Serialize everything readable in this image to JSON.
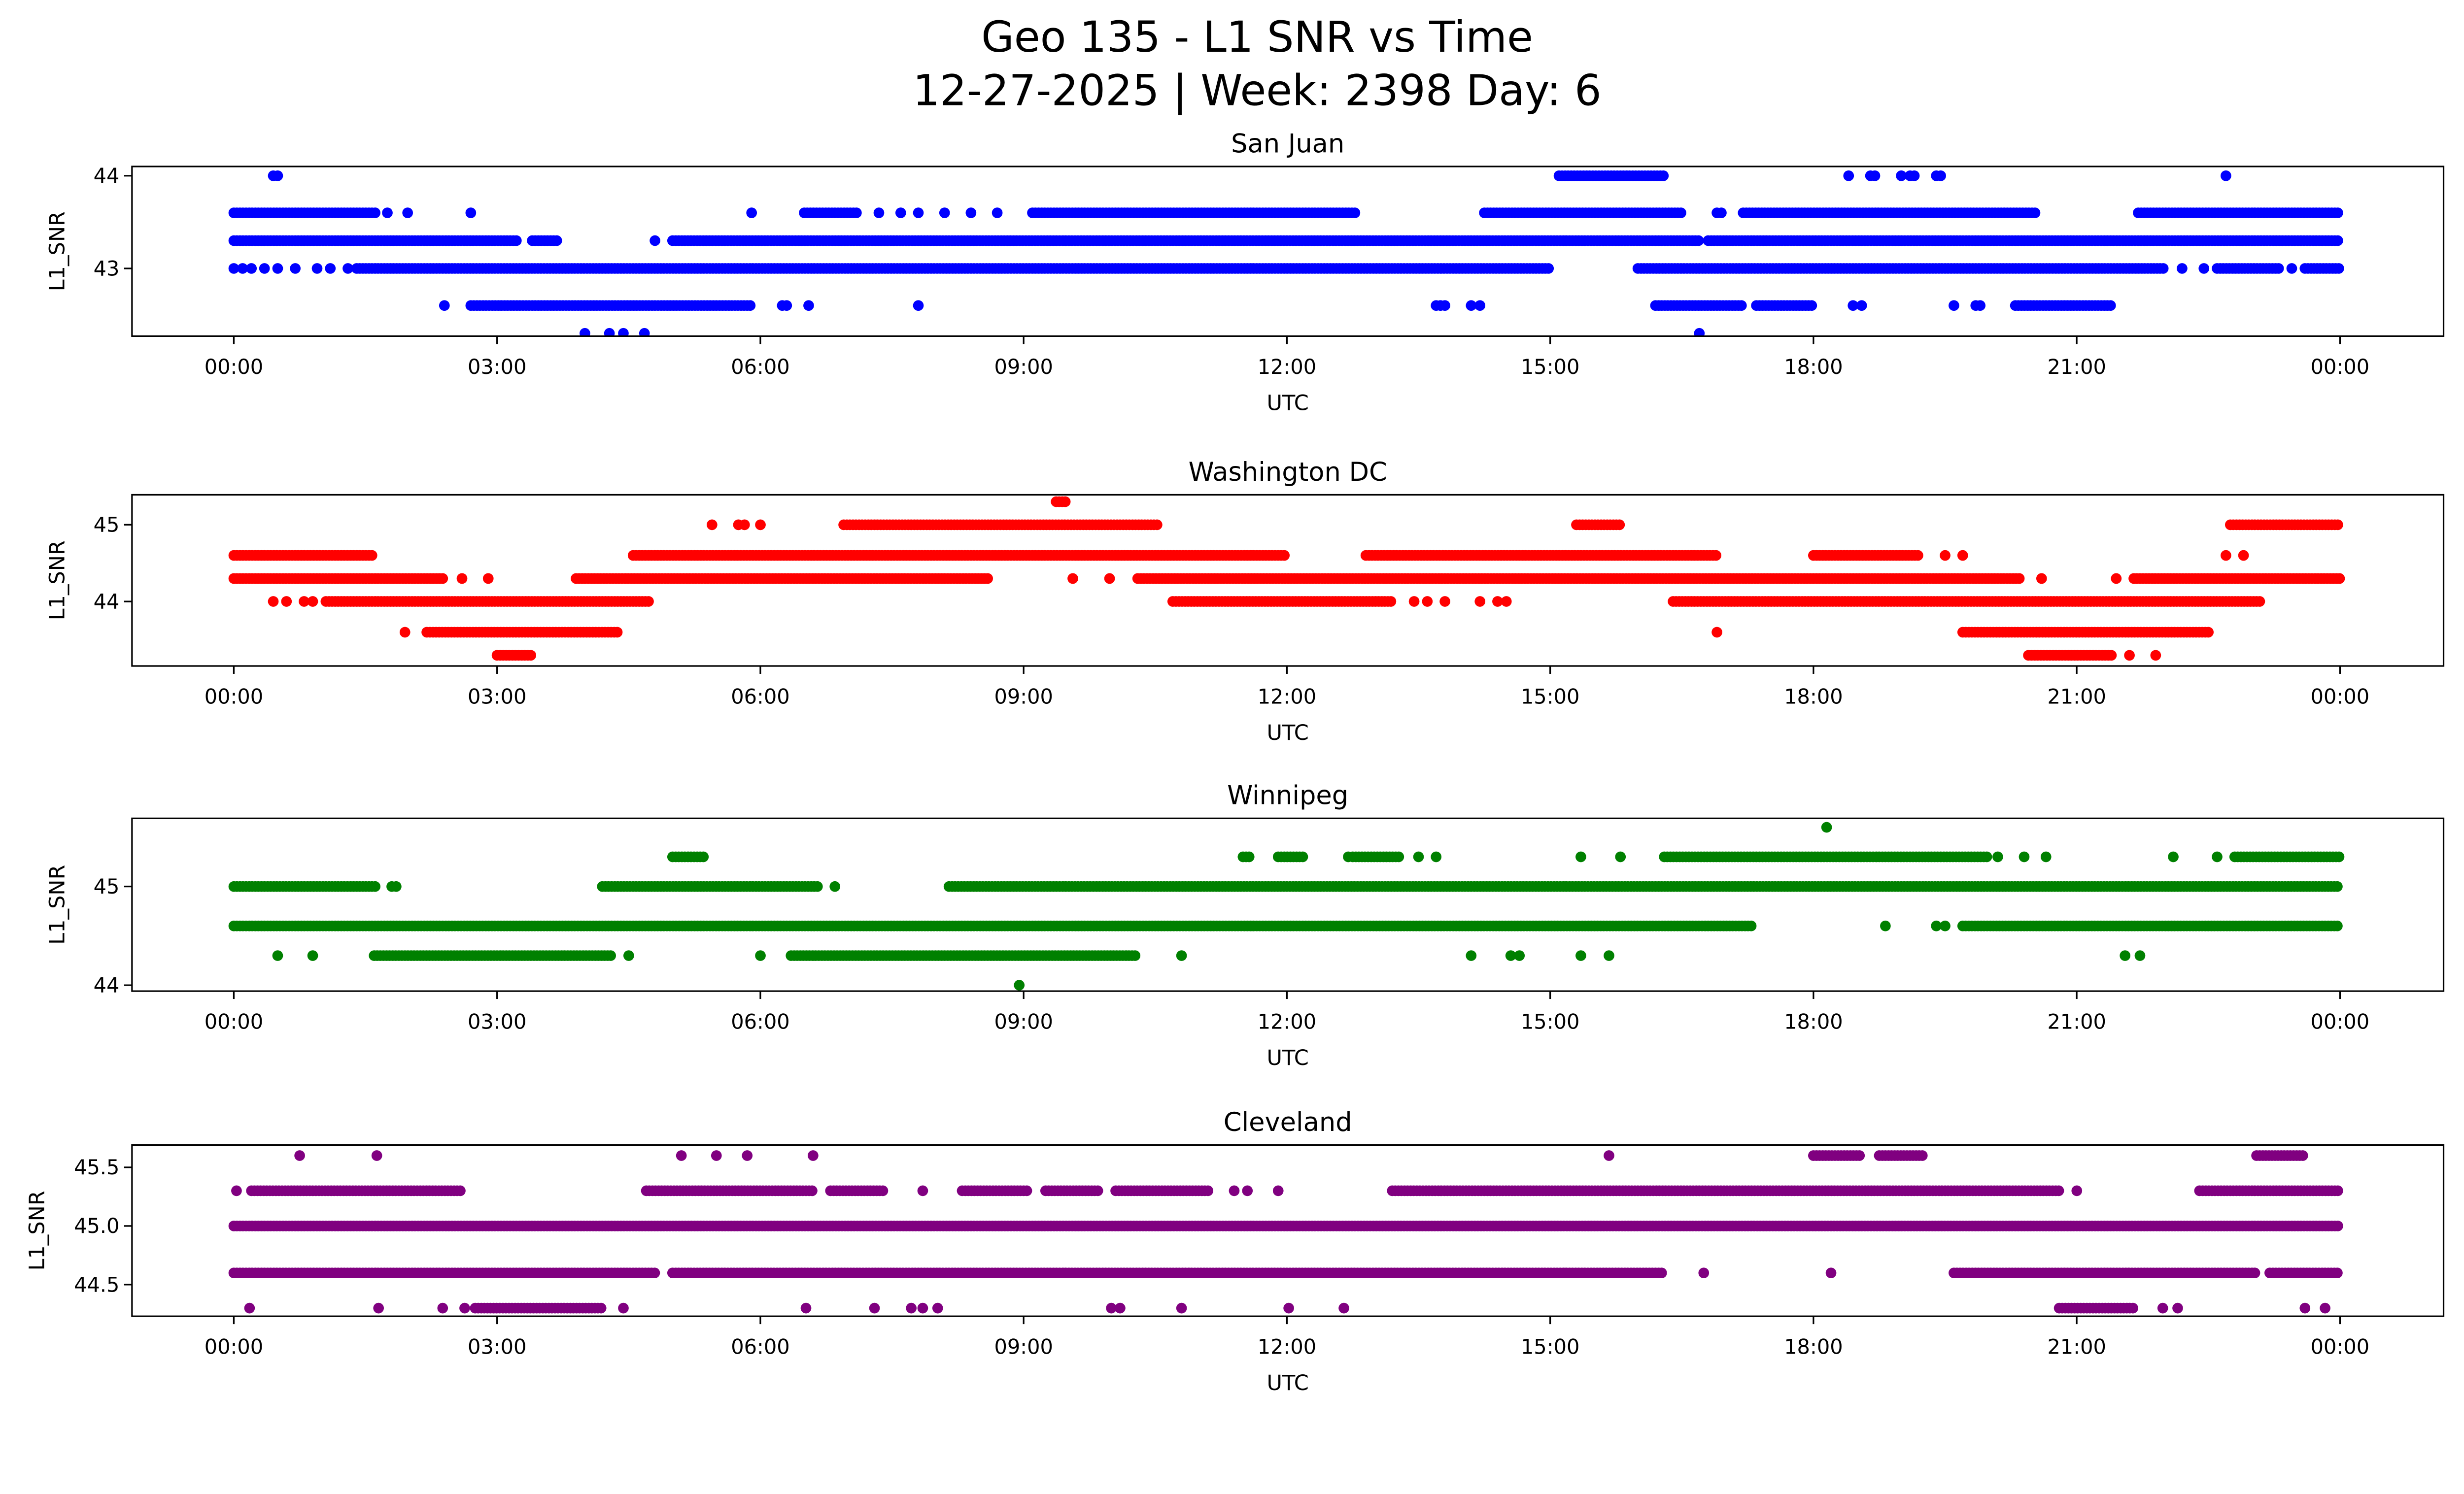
{
  "chart_data": [
    {
      "type": "scatter",
      "suptitle_line1": "Geo 135 - L1 SNR vs Time",
      "suptitle_line2": "12-27-2025 | Week: 2398 Day: 6",
      "title": "San Juan",
      "xlabel": "UTC",
      "ylabel": "L1_SNR",
      "color": "#0000ff",
      "xlim_hours": [
        -1.16,
        25.18
      ],
      "ylim": [
        42.27,
        44.1
      ],
      "xticks": [
        0,
        3,
        6,
        9,
        12,
        15,
        18,
        21,
        24
      ],
      "xtick_labels": [
        "00:00",
        "03:00",
        "06:00",
        "09:00",
        "12:00",
        "15:00",
        "18:00",
        "21:00",
        "00:00"
      ],
      "yticks": [
        43,
        44
      ],
      "ytick_labels": [
        "43",
        "44"
      ],
      "levels": [
        {
          "y": 44.0,
          "runs": [
            [
              15.1,
              16.3
            ]
          ],
          "points": [
            0.45,
            0.5,
            18.4,
            18.65,
            18.7,
            19.0,
            19.1,
            19.15,
            19.4,
            19.45,
            22.7
          ]
        },
        {
          "y": 43.6,
          "runs": [
            [
              0,
              1.63
            ],
            [
              6.5,
              7.1
            ],
            [
              9.1,
              12.8
            ],
            [
              14.25,
              16.5
            ],
            [
              17.2,
              20.55
            ],
            [
              21.7,
              24
            ]
          ],
          "points": [
            1.75,
            1.98,
            2.7,
            5.9,
            7.35,
            7.6,
            7.8,
            8.1,
            8.4,
            8.7,
            16.9,
            16.95
          ]
        },
        {
          "y": 43.3,
          "runs": [
            [
              0,
              3.25
            ],
            [
              3.4,
              3.7
            ],
            [
              5.0,
              16.7
            ],
            [
              16.8,
              24
            ]
          ],
          "points": [
            4.8
          ]
        },
        {
          "y": 43.0,
          "runs": [
            [
              1.4,
              15.0
            ],
            [
              16.0,
              22.0
            ],
            [
              22.6,
              23.3
            ],
            [
              23.6,
              24
            ]
          ],
          "points": [
            0,
            0.1,
            0.2,
            0.35,
            0.5,
            0.7,
            0.95,
            1.1,
            1.3,
            22.2,
            22.45,
            23.45
          ]
        },
        {
          "y": 42.6,
          "runs": [
            [
              2.7,
              5.9
            ],
            [
              16.2,
              17.2
            ],
            [
              17.35,
              18.0
            ],
            [
              20.3,
              21.4
            ]
          ],
          "points": [
            2.4,
            6.25,
            6.3,
            6.55,
            7.8,
            13.7,
            13.75,
            13.8,
            14.1,
            14.2,
            18.45,
            18.55,
            19.6,
            19.85,
            19.9
          ]
        },
        {
          "y": 42.3,
          "runs": [],
          "points": [
            4.0,
            4.28,
            4.44,
            4.68,
            16.7
          ]
        }
      ]
    },
    {
      "type": "scatter",
      "title": "Washington DC",
      "xlabel": "UTC",
      "ylabel": "L1_SNR",
      "color": "#ff0000",
      "xlim_hours": [
        -1.16,
        25.18
      ],
      "ylim": [
        43.16,
        45.39
      ],
      "xticks": [
        0,
        3,
        6,
        9,
        12,
        15,
        18,
        21,
        24
      ],
      "xtick_labels": [
        "00:00",
        "03:00",
        "06:00",
        "09:00",
        "12:00",
        "15:00",
        "18:00",
        "21:00",
        "00:00"
      ],
      "yticks": [
        44,
        45
      ],
      "ytick_labels": [
        "44",
        "45"
      ],
      "levels": [
        {
          "y": 45.3,
          "runs": [
            [
              9.37,
              9.5
            ]
          ],
          "points": []
        },
        {
          "y": 45.0,
          "runs": [
            [
              6.95,
              10.55
            ],
            [
              15.3,
              15.8
            ],
            [
              22.75,
              24
            ]
          ],
          "points": [
            5.45,
            5.75,
            5.82,
            6.0
          ]
        },
        {
          "y": 44.6,
          "runs": [
            [
              0,
              1.6
            ],
            [
              4.55,
              12.0
            ],
            [
              12.9,
              16.9
            ],
            [
              18.0,
              19.2
            ]
          ],
          "points": [
            19.5,
            19.7,
            22.7,
            22.9
          ]
        },
        {
          "y": 44.3,
          "runs": [
            [
              0,
              2.4
            ],
            [
              3.9,
              8.6
            ],
            [
              10.3,
              20.35
            ],
            [
              21.65,
              24
            ]
          ],
          "points": [
            2.6,
            2.9,
            9.56,
            9.98,
            20.6,
            21.45
          ]
        },
        {
          "y": 44.0,
          "runs": [
            [
              1.05,
              4.75
            ],
            [
              10.7,
              13.2
            ],
            [
              16.4,
              23.1
            ]
          ],
          "points": [
            0.45,
            0.6,
            0.8,
            0.9,
            13.45,
            13.6,
            13.8,
            14.2,
            14.4,
            14.5
          ]
        },
        {
          "y": 43.6,
          "runs": [
            [
              2.2,
              4.4
            ],
            [
              19.7,
              22.5
            ]
          ],
          "points": [
            1.95,
            16.9
          ]
        },
        {
          "y": 43.3,
          "runs": [
            [
              3.0,
              3.4
            ],
            [
              20.45,
              21.4
            ]
          ],
          "points": [
            21.6,
            21.9
          ]
        }
      ]
    },
    {
      "type": "scatter",
      "title": "Winnipeg",
      "xlabel": "UTC",
      "ylabel": "L1_SNR",
      "color": "#008000",
      "xlim_hours": [
        -1.16,
        25.18
      ],
      "ylim": [
        43.94,
        45.69
      ],
      "xticks": [
        0,
        3,
        6,
        9,
        12,
        15,
        18,
        21,
        24
      ],
      "xtick_labels": [
        "00:00",
        "03:00",
        "06:00",
        "09:00",
        "12:00",
        "15:00",
        "18:00",
        "21:00",
        "00:00"
      ],
      "yticks": [
        44,
        45
      ],
      "ytick_labels": [
        "44",
        "45"
      ],
      "levels": [
        {
          "y": 45.6,
          "runs": [],
          "points": [
            18.15
          ]
        },
        {
          "y": 45.3,
          "runs": [
            [
              5.0,
              5.35
            ],
            [
              11.5,
              11.6
            ],
            [
              11.9,
              12.2
            ],
            [
              12.75,
              13.3
            ],
            [
              16.3,
              20.0
            ],
            [
              22.8,
              24
            ]
          ],
          "points": [
            12.7,
            13.5,
            13.7,
            15.35,
            15.8,
            20.1,
            20.4,
            20.65,
            22.1,
            22.6
          ]
        },
        {
          "y": 45.0,
          "runs": [
            [
              0,
              1.63
            ],
            [
              4.2,
              6.65
            ],
            [
              8.15,
              24
            ]
          ],
          "points": [
            1.8,
            1.85,
            6.85
          ]
        },
        {
          "y": 44.6,
          "runs": [
            [
              0,
              17.3
            ],
            [
              19.7,
              24
            ]
          ],
          "points": [
            18.82,
            19.4,
            19.5
          ]
        },
        {
          "y": 44.3,
          "runs": [
            [
              1.6,
              4.3
            ],
            [
              6.35,
              10.3
            ]
          ],
          "points": [
            0.5,
            0.9,
            4.5,
            6.0,
            10.8,
            14.1,
            14.55,
            14.65,
            15.35,
            15.67,
            21.55,
            21.72
          ]
        },
        {
          "y": 44.0,
          "runs": [],
          "points": [
            8.95
          ]
        }
      ]
    },
    {
      "type": "scatter",
      "title": "Cleveland",
      "xlabel": "UTC",
      "ylabel": "L1_SNR",
      "color": "#800080",
      "xlim_hours": [
        -1.16,
        25.18
      ],
      "ylim": [
        44.23,
        45.69
      ],
      "xticks": [
        0,
        3,
        6,
        9,
        12,
        15,
        18,
        21,
        24
      ],
      "xtick_labels": [
        "00:00",
        "03:00",
        "06:00",
        "09:00",
        "12:00",
        "15:00",
        "18:00",
        "21:00",
        "00:00"
      ],
      "yticks": [
        44.5,
        45.0,
        45.5
      ],
      "ytick_labels": [
        "44.5",
        "45.0",
        "45.5"
      ],
      "levels": [
        {
          "y": 45.6,
          "runs": [
            [
              18.0,
              18.55
            ],
            [
              18.75,
              19.25
            ],
            [
              23.05,
              23.6
            ]
          ],
          "points": [
            0.75,
            1.63,
            5.1,
            5.5,
            5.85,
            6.6,
            15.67
          ]
        },
        {
          "y": 45.3,
          "runs": [
            [
              0.2,
              2.6
            ],
            [
              4.7,
              6.6
            ],
            [
              6.8,
              7.4
            ],
            [
              8.3,
              9.05
            ],
            [
              9.25,
              9.85
            ],
            [
              10.05,
              11.1
            ],
            [
              13.2,
              20.8
            ],
            [
              22.4,
              24
            ]
          ],
          "points": [
            0.03,
            7.85,
            11.4,
            11.55,
            11.9,
            21.0
          ]
        },
        {
          "y": 45.0,
          "runs": [
            [
              0,
              24
            ]
          ],
          "points": []
        },
        {
          "y": 44.6,
          "runs": [
            [
              0,
              4.8
            ],
            [
              5.0,
              16.3
            ],
            [
              19.6,
              23.05
            ],
            [
              23.2,
              24
            ]
          ],
          "points": [
            16.75,
            18.2
          ]
        },
        {
          "y": 44.3,
          "runs": [
            [
              2.75,
              4.2
            ],
            [
              20.8,
              21.65
            ]
          ],
          "points": [
            0.18,
            1.65,
            2.38,
            2.63,
            4.44,
            6.52,
            7.3,
            7.72,
            7.85,
            8.02,
            10.0,
            10.1,
            10.8,
            12.02,
            12.65,
            21.98,
            22.15,
            23.6,
            23.83
          ]
        }
      ]
    }
  ]
}
